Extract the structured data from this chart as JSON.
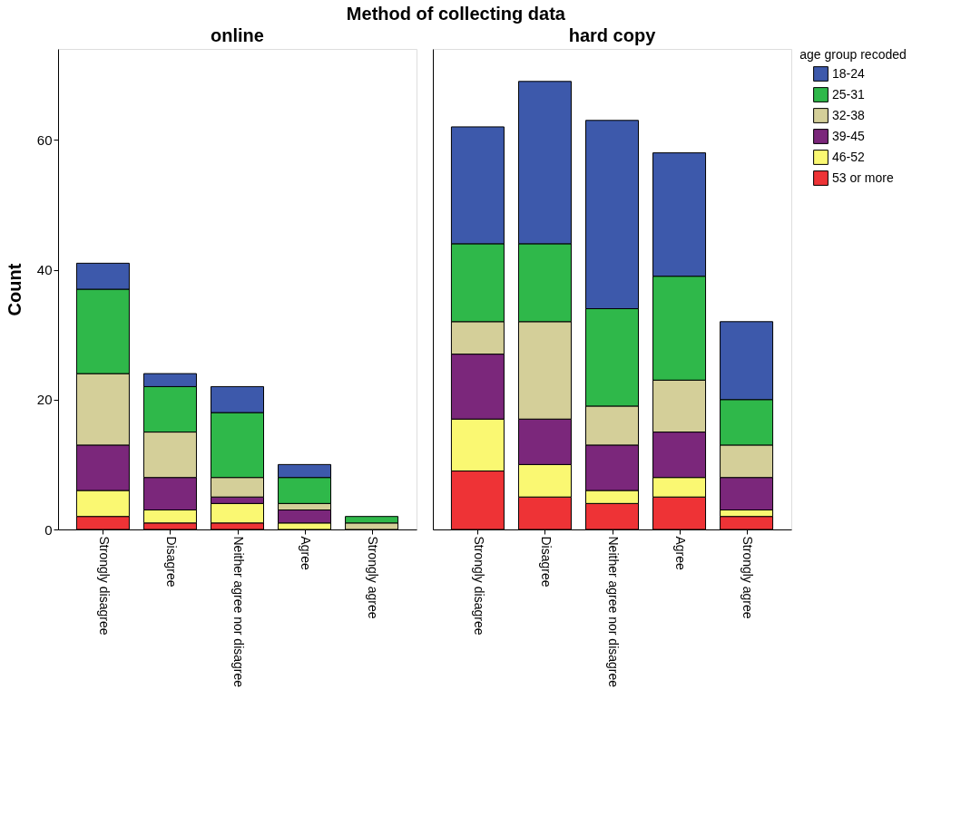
{
  "chart_data": [
    {
      "type": "bar",
      "title": "online",
      "annotations": [
        "Method of collecting data"
      ],
      "ylabel": "Count",
      "legend_title": "age group recoded",
      "categories": [
        "Strongly disagree",
        "Disagree",
        "Neither agree nor disagree",
        "Agree",
        "Strongly agree"
      ],
      "stacked": true,
      "ylim": [
        0,
        74
      ],
      "yticks": [
        0,
        20,
        40,
        60
      ],
      "grid": false,
      "legend": "right",
      "series": [
        {
          "name": "53 or more",
          "color": "#ee3336",
          "values": [
            2,
            1,
            1,
            0,
            0
          ]
        },
        {
          "name": "46-52",
          "color": "#faf872",
          "values": [
            4,
            2,
            3,
            1,
            0
          ]
        },
        {
          "name": "39-45",
          "color": "#7b277b",
          "values": [
            7,
            5,
            1,
            2,
            0
          ]
        },
        {
          "name": "32-38",
          "color": "#d4cf99",
          "values": [
            11,
            7,
            3,
            1,
            1
          ]
        },
        {
          "name": "25-31",
          "color": "#2fb84a",
          "values": [
            13,
            7,
            10,
            4,
            1
          ]
        },
        {
          "name": "18-24",
          "color": "#3d59ab",
          "values": [
            4,
            2,
            4,
            2,
            0
          ]
        }
      ]
    },
    {
      "type": "bar",
      "title": "hard copy",
      "categories": [
        "Strongly disagree",
        "Disagree",
        "Neither agree nor disagree",
        "Agree",
        "Strongly agree"
      ],
      "stacked": true,
      "ylim": [
        0,
        74
      ],
      "yticks": [
        0,
        20,
        40,
        60
      ],
      "tick_labels": "x",
      "grid": false,
      "legend": "right",
      "series": [
        {
          "name": "53 or more",
          "color": "#ee3336",
          "values": [
            9,
            5,
            4,
            5,
            2
          ]
        },
        {
          "name": "46-52",
          "color": "#faf872",
          "values": [
            8,
            5,
            2,
            3,
            1
          ]
        },
        {
          "name": "39-45",
          "color": "#7b277b",
          "values": [
            10,
            7,
            7,
            7,
            5
          ]
        },
        {
          "name": "32-38",
          "color": "#d4cf99",
          "values": [
            5,
            15,
            6,
            8,
            5
          ]
        },
        {
          "name": "25-31",
          "color": "#2fb84a",
          "values": [
            12,
            12,
            15,
            16,
            7
          ]
        },
        {
          "name": "18-24",
          "color": "#3d59ab",
          "values": [
            18,
            25,
            29,
            19,
            12
          ]
        }
      ]
    }
  ]
}
